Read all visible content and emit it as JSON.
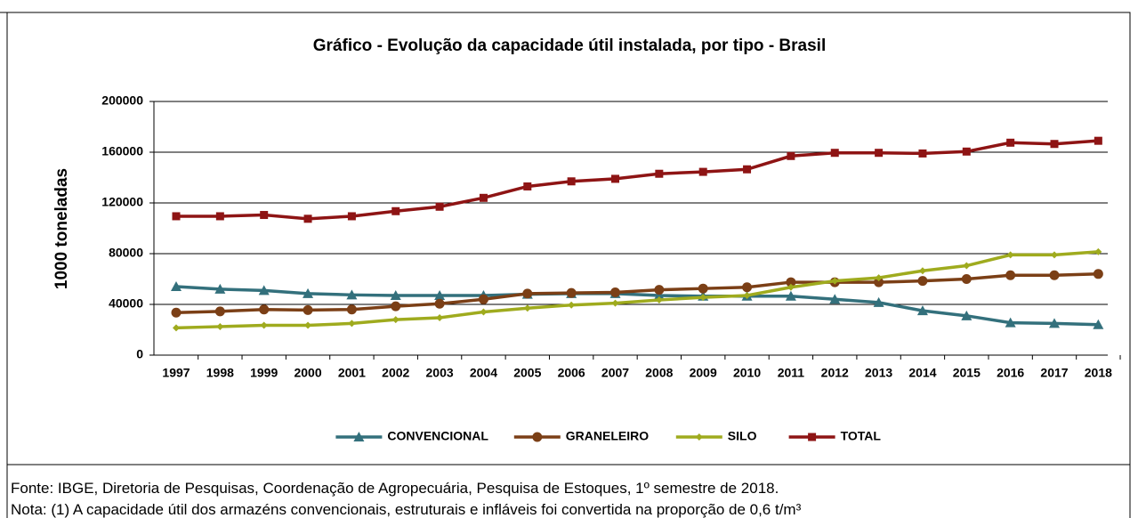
{
  "chart_data": {
    "type": "line",
    "title": "Gráfico  - Evolução da capacidade útil instalada, por tipo - Brasil",
    "y_label": "1000 toneladas",
    "categories": [
      "1997",
      "1998",
      "1999",
      "2000",
      "2001",
      "2002",
      "2003",
      "2004",
      "2005",
      "2006",
      "2007",
      "2008",
      "2009",
      "2010",
      "2011",
      "2012",
      "2013",
      "2014",
      "2015",
      "2016",
      "2017",
      "2018"
    ],
    "series": [
      {
        "name": "CONVENCIONAL",
        "color": "#33707c",
        "marker": "triangle",
        "values": [
          54000,
          52000,
          51000,
          48500,
          47500,
          47000,
          47000,
          47000,
          48000,
          48500,
          48500,
          47000,
          46500,
          46500,
          46500,
          44000,
          41500,
          35000,
          31000,
          25500,
          25000,
          24000
        ]
      },
      {
        "name": "GRANELEIRO",
        "color": "#7b3f16",
        "marker": "circle",
        "values": [
          33500,
          34500,
          36000,
          35500,
          36000,
          38500,
          40500,
          44000,
          48500,
          49000,
          49500,
          51500,
          52500,
          53500,
          57500,
          57500,
          57500,
          58500,
          60000,
          63000,
          63000,
          64000
        ]
      },
      {
        "name": "SILO",
        "color": "#9fab1e",
        "marker": "diamond",
        "values": [
          21500,
          22500,
          23500,
          23500,
          25000,
          28000,
          29500,
          34000,
          37000,
          39500,
          41000,
          43500,
          45500,
          47000,
          53500,
          58500,
          61000,
          66500,
          70500,
          79000,
          79000,
          81500
        ]
      },
      {
        "name": "TOTAL",
        "color": "#8e1414",
        "marker": "square",
        "values": [
          109500,
          109500,
          110500,
          107500,
          109500,
          113500,
          117000,
          124000,
          133000,
          137000,
          139000,
          143000,
          144500,
          146500,
          157000,
          159500,
          159500,
          159000,
          160500,
          167500,
          166500,
          169000
        ]
      }
    ],
    "ylim": [
      0,
      200000
    ],
    "yticks": [
      0,
      40000,
      80000,
      120000,
      160000,
      200000
    ],
    "grid": true,
    "legend": "bottom"
  },
  "notes": [
    "Fonte: IBGE, Diretoria de Pesquisas, Coordenação de Agropecuária, Pesquisa de Estoques, 1º semestre de 2018.",
    "Nota: (1) A capacidade útil dos armazéns convencionais, estruturais e infláveis foi convertida na proporção de 0,6 t/m³"
  ]
}
